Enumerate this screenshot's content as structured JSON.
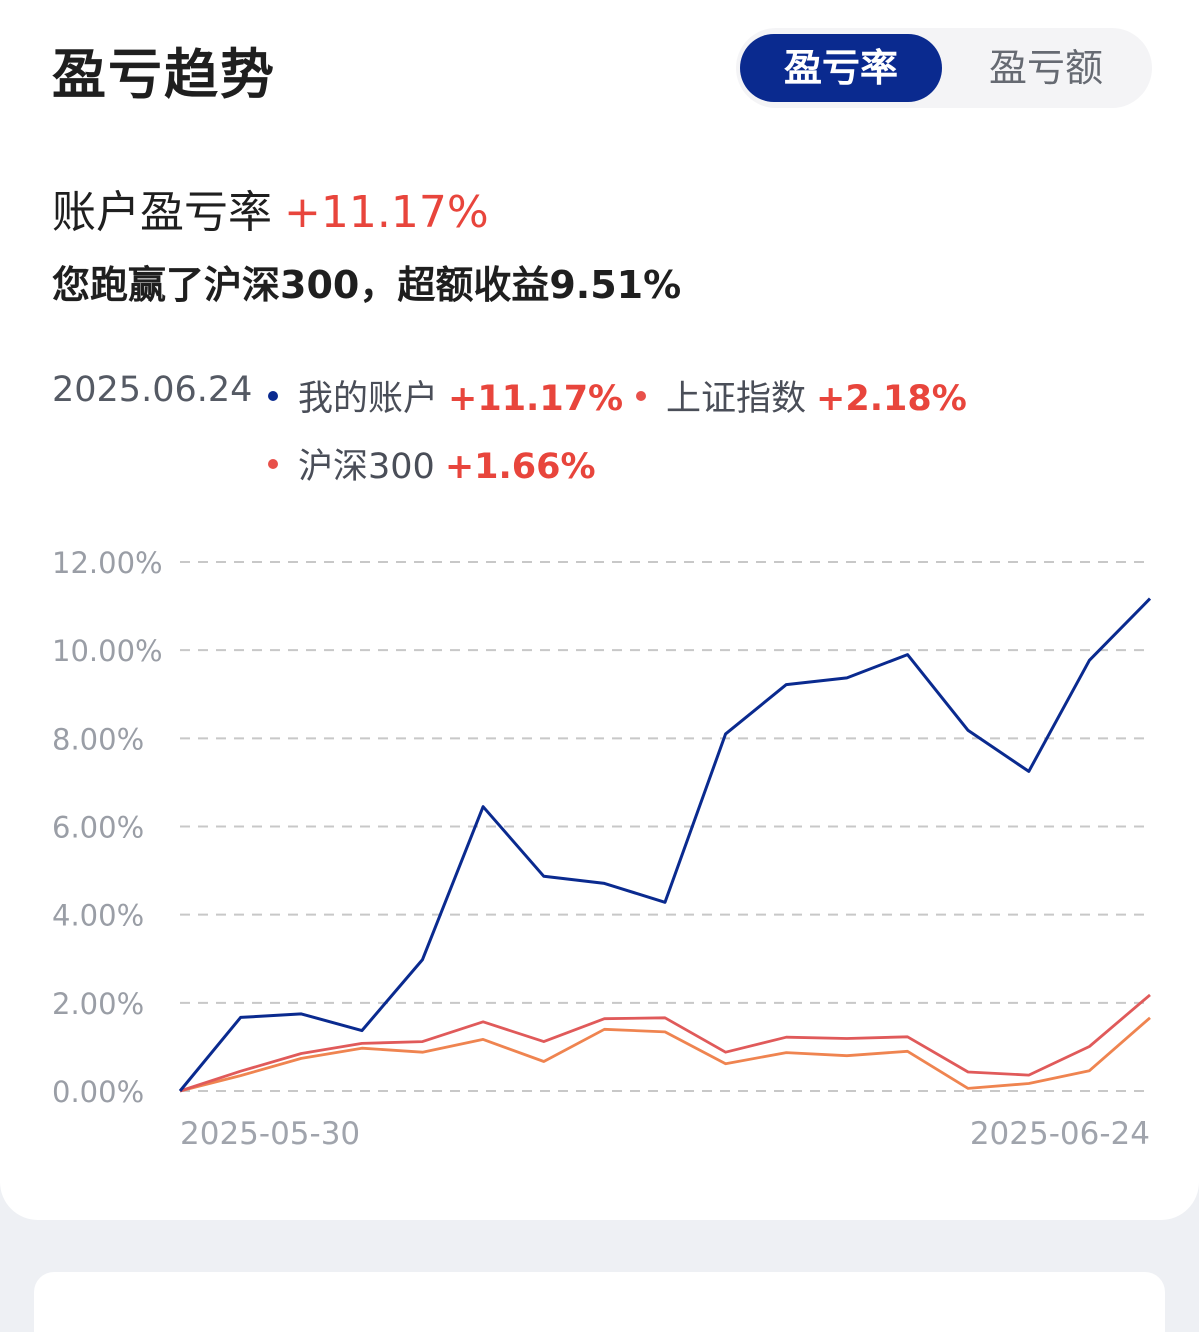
{
  "header": {
    "title": "盈亏趋势",
    "tabs": [
      {
        "label": "盈亏率",
        "active": true
      },
      {
        "label": "盈亏额",
        "active": false
      }
    ]
  },
  "summary": {
    "label": "账户盈亏率",
    "value": "+11.17%",
    "subline": "您跑赢了沪深300，超额收益9.51%"
  },
  "legend": {
    "date": "2025.06.24",
    "items": [
      {
        "name": "我的账户",
        "value": "+11.17%",
        "color": "#0a2a8f"
      },
      {
        "name": "上证指数",
        "value": "+2.18%",
        "color": "#e8504a"
      },
      {
        "name": "沪深300",
        "value": "+1.66%",
        "color": "#e8504a"
      }
    ]
  },
  "colors": {
    "accent": "#0a2a8f",
    "positive": "#e8453c",
    "account_line": "#0a2a8f",
    "sse_line": "#e05a5a",
    "csi300_line": "#ef8450"
  },
  "chart_data": {
    "type": "line",
    "x_start_label": "2025-05-30",
    "x_end_label": "2025-06-24",
    "y_ticks": [
      "12.00%",
      "10.00%",
      "8.00%",
      "6.00%",
      "4.00%",
      "2.00%",
      "0.00%"
    ],
    "ylim": [
      0,
      12
    ],
    "grid": true,
    "series": [
      {
        "name": "我的账户",
        "color": "#0a2a8f",
        "values": [
          0.0,
          1.67,
          1.75,
          1.37,
          2.98,
          6.45,
          4.87,
          4.71,
          4.28,
          8.1,
          9.22,
          9.37,
          9.9,
          8.18,
          7.25,
          9.77,
          11.17
        ]
      },
      {
        "name": "上证指数",
        "color": "#e05a5a",
        "values": [
          0.0,
          0.45,
          0.85,
          1.08,
          1.12,
          1.57,
          1.12,
          1.64,
          1.66,
          0.88,
          1.22,
          1.19,
          1.23,
          0.43,
          0.36,
          1.01,
          2.18
        ]
      },
      {
        "name": "沪深300",
        "color": "#ef8450",
        "values": [
          0.0,
          0.35,
          0.74,
          0.97,
          0.88,
          1.17,
          0.67,
          1.4,
          1.34,
          0.62,
          0.87,
          0.8,
          0.9,
          0.06,
          0.17,
          0.46,
          1.66
        ]
      }
    ]
  }
}
